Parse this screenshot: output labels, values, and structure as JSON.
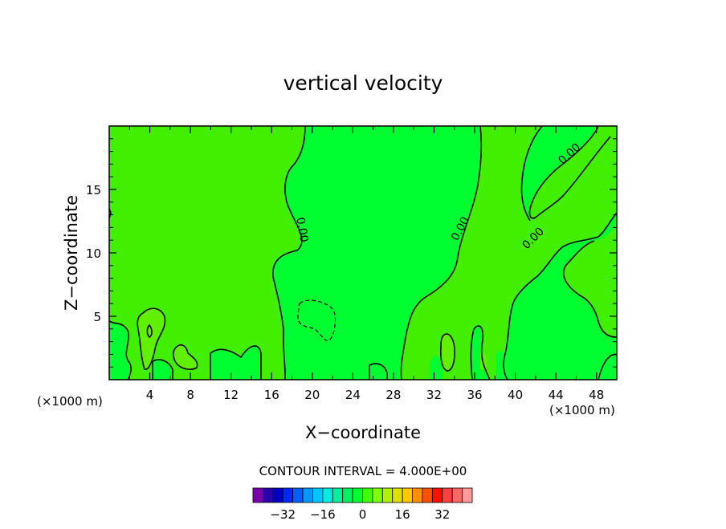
{
  "chart_data": {
    "type": "heatmap",
    "title": "vertical velocity",
    "xlabel": "X−coordinate",
    "ylabel": "Z−coordinate",
    "x_unit_left": "(×1000 m)",
    "x_unit_right": "(×1000 m)",
    "xlim": [
      0,
      50
    ],
    "ylim": [
      0,
      20
    ],
    "x_ticks": [
      4,
      8,
      12,
      16,
      20,
      24,
      28,
      32,
      36,
      40,
      44,
      48
    ],
    "y_ticks": [
      5,
      10,
      15
    ],
    "contour_labels": [
      "0.00",
      "0.00",
      "0.00",
      "0.00"
    ],
    "contour_interval_text": "CONTOUR INTERVAL = 4.000E+00",
    "colorbar": {
      "colors": [
        "#7a00b0",
        "#2a00a8",
        "#0000c8",
        "#0028ff",
        "#0060ff",
        "#0098ff",
        "#00c8ff",
        "#00eee0",
        "#00f0a0",
        "#00f060",
        "#00ff30",
        "#40ff00",
        "#80ff00",
        "#b0f000",
        "#e0e000",
        "#ffc800",
        "#ff9000",
        "#ff5000",
        "#ff1000",
        "#ff4040",
        "#ff6868",
        "#ff9a9a"
      ],
      "tick_labels": [
        "−32",
        "−16",
        "0",
        "16",
        "32"
      ],
      "tick_values": [
        -32,
        -16,
        0,
        16,
        32
      ],
      "vmin": -44,
      "vmax": 44
    },
    "region_colors": {
      "base": "#40f000",
      "negative": "#00ff30",
      "more_negative": "#00f070",
      "positive": "#60f000"
    }
  }
}
